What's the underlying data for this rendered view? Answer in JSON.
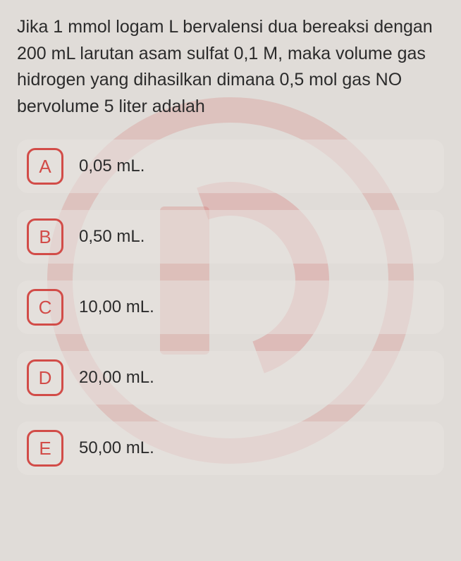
{
  "question": {
    "text": "Jika 1 mmol logam L bervalensi dua bereaksi dengan 200 mL larutan asam sulfat 0,1 M, maka volume gas hidrogen yang dihasilkan dimana 0,5 mol gas NO bervolume 5 liter adalah",
    "font_size": 25,
    "color": "#2b2b2b"
  },
  "options": [
    {
      "letter": "A",
      "text": "0,05 mL."
    },
    {
      "letter": "B",
      "text": "0,50 mL."
    },
    {
      "letter": "C",
      "text": "10,00 mL."
    },
    {
      "letter": "D",
      "text": "20,00 mL."
    },
    {
      "letter": "E",
      "text": "50,00 mL."
    }
  ],
  "styling": {
    "background_color": "#e0dcd8",
    "option_bg": "rgba(232,228,224,0.55)",
    "accent_color": "#d24c48",
    "letter_border_radius": 12,
    "letter_size": 52,
    "option_font_size": 24,
    "watermark_color": "rgba(210,76,72,0.2)"
  }
}
